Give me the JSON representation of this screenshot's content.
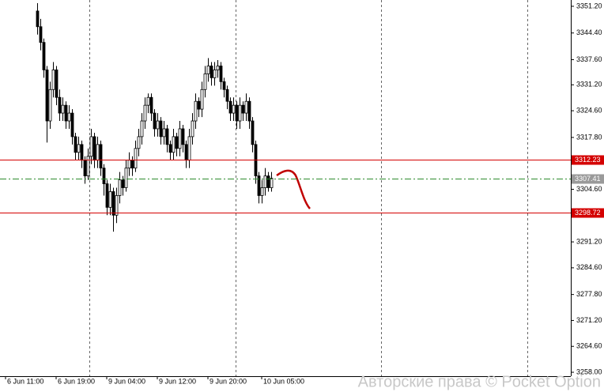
{
  "chart_data": {
    "type": "candlestick",
    "categories": [
      null,
      null,
      null,
      null,
      null,
      null,
      null,
      null,
      null,
      null,
      null,
      null,
      null,
      null,
      null,
      null,
      null,
      null,
      null,
      null,
      null,
      null,
      null,
      null,
      null,
      null,
      null,
      null,
      null,
      null,
      null,
      null,
      null,
      null,
      null,
      null,
      null,
      null,
      null,
      null,
      null,
      null,
      null,
      null,
      null,
      null,
      null,
      null,
      null,
      null,
      null,
      null,
      null,
      null,
      null,
      null,
      null,
      null,
      null,
      null,
      null,
      null,
      null,
      null,
      null,
      null,
      null,
      null,
      null,
      null,
      null,
      null,
      null,
      null,
      null
    ],
    "open": [
      3350,
      3346,
      3342,
      3335,
      3322,
      3330,
      3335,
      3328,
      3324,
      3326,
      3322,
      3324,
      3318,
      3314,
      3316,
      3312,
      3308,
      3313,
      3318,
      3312,
      3316,
      3310,
      3306,
      3300,
      3304,
      3298,
      3303,
      3307,
      3305,
      3310,
      3312,
      3310,
      3315,
      3318,
      3322,
      3326,
      3328,
      3324,
      3320,
      3322,
      3318,
      3320,
      3316,
      3314,
      3318,
      3315,
      3320,
      3316,
      3312,
      3318,
      3322,
      3327,
      3325,
      3330,
      3334,
      3336,
      3333,
      3335,
      3336,
      3332,
      3330,
      3327,
      3324,
      3326,
      3322,
      3326,
      3324,
      3327,
      3322,
      3316,
      3308,
      3303,
      3305,
      3308,
      3305
    ],
    "high": [
      3352,
      3348,
      3343,
      3336,
      3332,
      3337,
      3336,
      3330,
      3328,
      3327,
      3326,
      3325,
      3319,
      3318,
      3317,
      3313,
      3315,
      3320,
      3319,
      3318,
      3317,
      3311,
      3307,
      3306,
      3305,
      3305,
      3309,
      3308,
      3312,
      3314,
      3313,
      3317,
      3320,
      3324,
      3328,
      3329,
      3329,
      3325,
      3324,
      3323,
      3322,
      3321,
      3317,
      3320,
      3319,
      3322,
      3321,
      3317,
      3320,
      3324,
      3329,
      3328,
      3332,
      3336,
      3338,
      3337,
      3337,
      3337.5,
      3337,
      3333,
      3331,
      3328,
      3328,
      3327,
      3328,
      3327,
      3329,
      3328,
      3323,
      3317,
      3309,
      3307,
      3310,
      3309,
      3309
    ],
    "low": [
      3344,
      3340,
      3333,
      3316.5,
      3320,
      3328,
      3326,
      3322,
      3322,
      3320,
      3320,
      3316,
      3312,
      3312,
      3310,
      3306,
      3307,
      3311,
      3310,
      3310,
      3308,
      3303,
      3298,
      3298,
      3293.8,
      3296,
      3301,
      3303,
      3304,
      3308,
      3308,
      3309,
      3313,
      3316,
      3320,
      3324,
      3322,
      3318,
      3318,
      3316,
      3316,
      3314,
      3312,
      3312,
      3313,
      3313,
      3314,
      3310,
      3310,
      3316,
      3320,
      3323,
      3323,
      3328,
      3332,
      3331,
      3331,
      3333,
      3330,
      3328,
      3325,
      3322,
      3322,
      3320,
      3320,
      3322,
      3322,
      3320,
      3314,
      3306,
      3301,
      3301,
      3303,
      3304,
      3304
    ],
    "close": [
      3346,
      3342,
      3335,
      3322,
      3330,
      3335,
      3328,
      3324,
      3326,
      3322,
      3324,
      3318,
      3314,
      3316,
      3312,
      3308,
      3313,
      3318,
      3312,
      3316,
      3310,
      3306,
      3300,
      3304,
      3298,
      3303,
      3307,
      3305,
      3310,
      3312,
      3310,
      3315,
      3318,
      3322,
      3326,
      3328,
      3324,
      3320,
      3322,
      3318,
      3320,
      3316,
      3314,
      3318,
      3315,
      3320,
      3316,
      3312,
      3318,
      3322,
      3327,
      3325,
      3330,
      3334,
      3336,
      3333,
      3335,
      3336,
      3332,
      3330,
      3327,
      3324,
      3326,
      3322,
      3326,
      3324,
      3327,
      3322,
      3316,
      3308,
      3303,
      3305,
      3308,
      3305,
      3307.41
    ],
    "ylim": [
      3257,
      3352.8
    ],
    "yticks": [
      {
        "value": 3351.2,
        "label": "3351.20"
      },
      {
        "value": 3344.4,
        "label": "3344.40"
      },
      {
        "value": 3337.6,
        "label": "3337.60"
      },
      {
        "value": 3331.2,
        "label": "3331.20"
      },
      {
        "value": 3324.6,
        "label": "3324.60"
      },
      {
        "value": 3317.8,
        "label": "3317.80"
      },
      {
        "value": 3304.6,
        "label": "3304.60"
      },
      {
        "value": 3291.2,
        "label": "3291.20"
      },
      {
        "value": 3284.6,
        "label": "3284.60"
      },
      {
        "value": 3277.8,
        "label": "3277.80"
      },
      {
        "value": 3271.2,
        "label": "3271.20"
      },
      {
        "value": 3264.6,
        "label": "3264.60"
      },
      {
        "value": 3258,
        "label": "3258.00"
      }
    ],
    "xticks": [
      {
        "value": -10,
        "label": "6 Jun 11:00"
      },
      {
        "value": 6,
        "label": "6 Jun 19:00"
      },
      {
        "value": 22,
        "label": "9 Jun 04:00"
      },
      {
        "value": 38,
        "label": "9 Jun 12:00"
      },
      {
        "value": 54,
        "label": "9 Jun 20:00"
      },
      {
        "value": 71,
        "label": "10 Jun 05:00"
      }
    ],
    "hlines": [
      {
        "value": 3312.23,
        "color": "#d40000",
        "box_color": "#d40000",
        "text_color": "#ffffff",
        "style": "solid"
      },
      {
        "value": 3307.41,
        "color": "#2e8b2e",
        "box_color": "#9a9a9a",
        "text_color": "#ffffff",
        "style": "dashdot"
      },
      {
        "value": 3298.72,
        "color": "#d40000",
        "box_color": "#d40000",
        "text_color": "#ffffff",
        "style": "solid"
      }
    ],
    "watermark": "Авторские права © Pocket Option"
  }
}
